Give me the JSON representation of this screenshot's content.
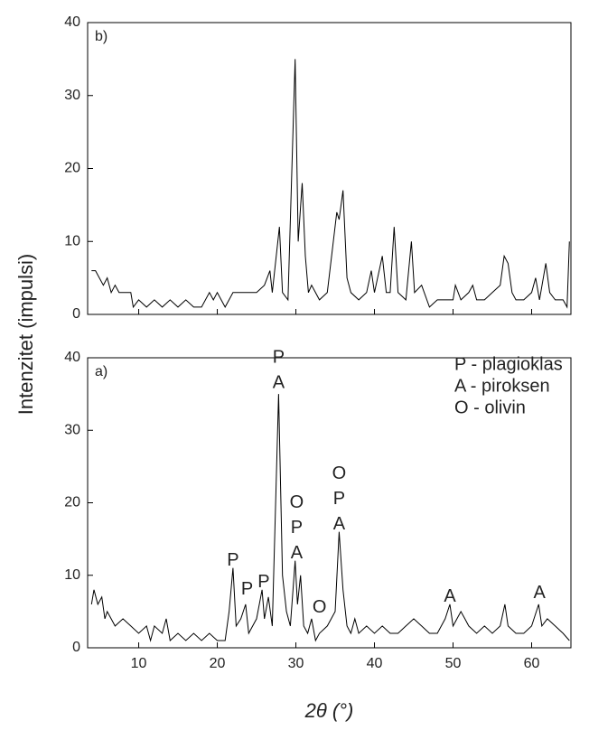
{
  "chart_data": [
    {
      "type": "line",
      "panel_label": "b)",
      "color": "#000000",
      "xlim": [
        3.5,
        65
      ],
      "xticks": [
        10,
        20,
        30,
        40,
        50,
        60
      ],
      "ylim": [
        0,
        40
      ],
      "yticks": [
        0,
        10,
        20,
        30,
        40
      ],
      "x": [
        4.0,
        4.5,
        5,
        5.5,
        6,
        6.5,
        7,
        7.5,
        8,
        9,
        9.3,
        10,
        11,
        12,
        13,
        14,
        15,
        16,
        17,
        18,
        19,
        19.5,
        20,
        21,
        22,
        23,
        24,
        25,
        26,
        26.7,
        27,
        27.9,
        28.3,
        29,
        29.9,
        30.3,
        30.8,
        31.2,
        31.6,
        32,
        33,
        34,
        35.2,
        35.5,
        36,
        36.5,
        37,
        38,
        39,
        39.6,
        40,
        41,
        41.5,
        42,
        42.5,
        43,
        44,
        44.7,
        45.1,
        46,
        47,
        48,
        49,
        50,
        50.3,
        51,
        52,
        52.5,
        53,
        54,
        55,
        56,
        56.5,
        57,
        57.5,
        58,
        59,
        60,
        60.5,
        61,
        61.8,
        62.3,
        63,
        64,
        64.5,
        64.8
      ],
      "values": [
        6,
        6,
        5,
        4,
        5,
        3,
        4,
        3,
        3,
        3,
        1,
        2,
        1,
        2,
        1,
        2,
        1,
        2,
        1,
        1,
        3,
        2,
        3,
        1,
        3,
        3,
        3,
        3,
        4,
        6,
        3,
        12,
        3,
        2,
        35,
        10,
        18,
        8,
        3,
        4,
        2,
        3,
        14,
        13,
        17,
        5,
        3,
        2,
        3,
        6,
        3,
        8,
        3,
        3,
        12,
        3,
        2,
        10,
        3,
        4,
        1,
        2,
        2,
        2,
        4,
        2,
        3,
        4,
        2,
        2,
        3,
        4,
        8,
        7,
        3,
        2,
        2,
        3,
        5,
        2,
        7,
        3,
        2,
        2,
        1,
        10
      ]
    },
    {
      "type": "line",
      "panel_label": "a)",
      "color": "#000000",
      "x_label": "2θ (°)",
      "y_label": "Intenzitet (impulsi)",
      "xlim": [
        3.5,
        65
      ],
      "xticks": [
        10,
        20,
        30,
        40,
        50,
        60
      ],
      "ylim": [
        0,
        40
      ],
      "yticks": [
        0,
        10,
        20,
        30,
        40
      ],
      "x": [
        4.0,
        4.3,
        4.8,
        5.3,
        5.7,
        6,
        7,
        8,
        9,
        10,
        11,
        11.5,
        12,
        13,
        13.5,
        14,
        15,
        16,
        17,
        18,
        19,
        20,
        21,
        21.5,
        22,
        22.4,
        23,
        23.6,
        24,
        25,
        25.7,
        26,
        26.5,
        27,
        27.8,
        28.3,
        28.8,
        29.3,
        29.9,
        30.2,
        30.6,
        31,
        31.5,
        32,
        32.5,
        33,
        34,
        35,
        35.5,
        36,
        36.5,
        37,
        37.5,
        38,
        39,
        40,
        41,
        42,
        43,
        44,
        45,
        46,
        47,
        48,
        49,
        49.6,
        50,
        51,
        51.5,
        52,
        53,
        54,
        55,
        56,
        56.6,
        57,
        58,
        59,
        60,
        60.9,
        61.3,
        62,
        63,
        64,
        64.8
      ],
      "values": [
        6,
        8,
        6,
        7,
        4,
        5,
        3,
        4,
        3,
        2,
        3,
        1,
        3,
        2,
        4,
        1,
        2,
        1,
        2,
        1,
        2,
        1,
        1,
        5,
        11,
        3,
        4,
        6,
        2,
        4,
        8,
        4,
        7,
        3,
        35,
        10,
        5,
        3,
        12,
        6,
        10,
        3,
        2,
        4,
        1,
        2,
        3,
        5,
        16,
        8,
        3,
        2,
        4,
        2,
        3,
        2,
        3,
        2,
        2,
        3,
        4,
        3,
        2,
        2,
        4,
        6,
        3,
        5,
        4,
        3,
        2,
        3,
        2,
        3,
        6,
        3,
        2,
        2,
        3,
        6,
        3,
        4,
        3,
        2,
        1
      ],
      "legend_notes": [
        "P - plagioklas",
        "A - piroksen",
        "O - olivin"
      ],
      "annotations": [
        [
          "P",
          "A"
        ],
        [
          "O",
          "P",
          "A"
        ],
        [
          "P"
        ],
        [
          "P"
        ],
        [
          "P"
        ],
        [
          "O"
        ],
        [
          "O",
          "P",
          "A"
        ],
        [
          "A"
        ],
        [
          "A"
        ]
      ]
    }
  ]
}
